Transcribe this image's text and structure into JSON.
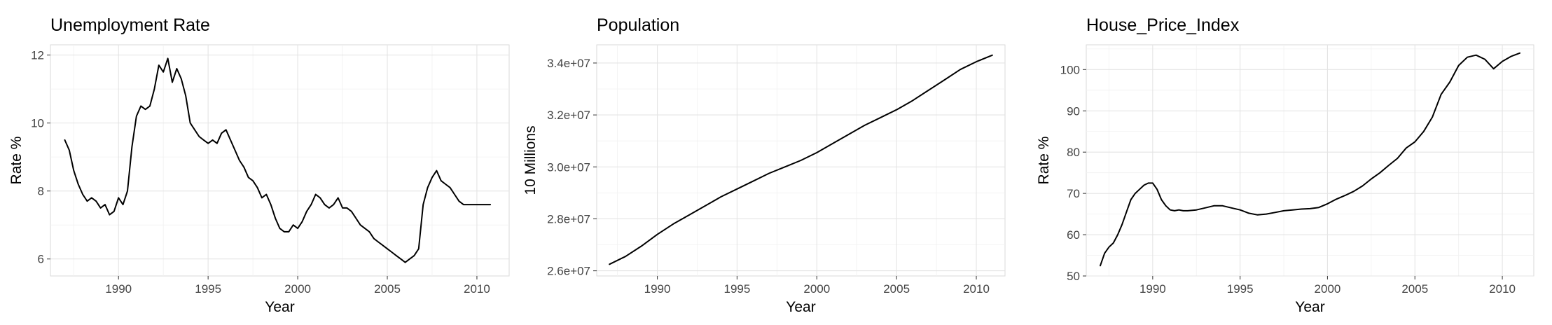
{
  "chart_data": [
    {
      "type": "line",
      "title": "Unemployment Rate",
      "xlabel": "Year",
      "ylabel": "Rate %",
      "xlim": [
        1986.2,
        2011.8
      ],
      "ylim": [
        5.5,
        12.3
      ],
      "xticks": [
        1990,
        1995,
        2000,
        2005,
        2010
      ],
      "yticks": [
        6,
        8,
        10,
        12
      ],
      "ytick_labels": [
        "6",
        "8",
        "10",
        "12"
      ],
      "grid": true,
      "series": [
        {
          "x": [
            1987.0,
            1987.25,
            1987.5,
            1987.75,
            1988.0,
            1988.25,
            1988.5,
            1988.75,
            1989.0,
            1989.25,
            1989.5,
            1989.75,
            1990.0,
            1990.25,
            1990.5,
            1990.75,
            1991.0,
            1991.25,
            1991.5,
            1991.75,
            1992.0,
            1992.25,
            1992.5,
            1992.75,
            1993.0,
            1993.25,
            1993.5,
            1993.75,
            1994.0,
            1994.25,
            1994.5,
            1994.75,
            1995.0,
            1995.25,
            1995.5,
            1995.75,
            1996.0,
            1996.25,
            1996.5,
            1996.75,
            1997.0,
            1997.25,
            1997.5,
            1997.75,
            1998.0,
            1998.25,
            1998.5,
            1998.75,
            1999.0,
            1999.25,
            1999.5,
            1999.75,
            2000.0,
            2000.25,
            2000.5,
            2000.75,
            2001.0,
            2001.25,
            2001.5,
            2001.75,
            2002.0,
            2002.25,
            2002.5,
            2002.75,
            2003.0,
            2003.25,
            2003.5,
            2003.75,
            2004.0,
            2004.25,
            2004.5,
            2004.75,
            2005.0,
            2005.25,
            2005.5,
            2005.75,
            2006.0,
            2006.25,
            2006.5,
            2006.75,
            2007.0,
            2007.25,
            2007.5,
            2007.75,
            2008.0,
            2008.25,
            2008.5,
            2008.75,
            2009.0,
            2009.25,
            2009.5,
            2009.75,
            2010.0,
            2010.25,
            2010.5,
            2010.75
          ],
          "values": [
            9.5,
            9.2,
            8.6,
            8.2,
            7.9,
            7.7,
            7.8,
            7.7,
            7.5,
            7.6,
            7.3,
            7.4,
            7.8,
            7.6,
            8.0,
            9.3,
            10.2,
            10.5,
            10.4,
            10.5,
            11.0,
            11.7,
            11.5,
            11.9,
            11.2,
            11.6,
            11.3,
            10.8,
            10.0,
            9.8,
            9.6,
            9.5,
            9.4,
            9.5,
            9.4,
            9.7,
            9.8,
            9.5,
            9.2,
            8.9,
            8.7,
            8.4,
            8.3,
            8.1,
            7.8,
            7.9,
            7.6,
            7.2,
            6.9,
            6.8,
            6.8,
            7.0,
            6.9,
            7.1,
            7.4,
            7.6,
            7.9,
            7.8,
            7.6,
            7.5,
            7.6,
            7.8,
            7.5,
            7.5,
            7.4,
            7.2,
            7.0,
            6.9,
            6.8,
            6.6,
            6.5,
            6.4,
            6.3,
            6.2,
            6.1,
            6.0,
            5.9,
            6.0,
            6.1,
            6.3,
            7.6,
            8.1,
            8.4,
            8.6,
            8.3,
            8.2,
            8.1,
            7.9,
            7.7,
            7.6,
            7.6,
            7.6,
            7.6,
            7.6,
            7.6,
            7.6
          ]
        }
      ]
    },
    {
      "type": "line",
      "title": "Population",
      "xlabel": "Year",
      "ylabel": "10 Millions",
      "xlim": [
        1986.2,
        2011.8
      ],
      "ylim": [
        25800000,
        34700000
      ],
      "xticks": [
        1990,
        1995,
        2000,
        2005,
        2010
      ],
      "yticks": [
        26000000,
        28000000,
        30000000,
        32000000,
        34000000
      ],
      "ytick_labels": [
        "2.6e+07",
        "2.8e+07",
        "3.0e+07",
        "3.2e+07",
        "3.4e+07"
      ],
      "grid": true,
      "series": [
        {
          "x": [
            1987.0,
            1988.0,
            1989.0,
            1990.0,
            1991.0,
            1992.0,
            1993.0,
            1994.0,
            1995.0,
            1996.0,
            1997.0,
            1998.0,
            1999.0,
            2000.0,
            2001.0,
            2002.0,
            2003.0,
            2004.0,
            2005.0,
            2006.0,
            2007.0,
            2008.0,
            2009.0,
            2010.0,
            2011.0
          ],
          "values": [
            26250000,
            26550000,
            26950000,
            27400000,
            27800000,
            28150000,
            28500000,
            28850000,
            29150000,
            29450000,
            29750000,
            30000000,
            30250000,
            30550000,
            30900000,
            31250000,
            31600000,
            31900000,
            32200000,
            32550000,
            32950000,
            33350000,
            33750000,
            34050000,
            34300000
          ]
        }
      ]
    },
    {
      "type": "line",
      "title": "House_Price_Index",
      "xlabel": "Year",
      "ylabel": "Rate %",
      "xlim": [
        1986.2,
        2011.8
      ],
      "ylim": [
        50,
        106
      ],
      "xticks": [
        1990,
        1995,
        2000,
        2005,
        2010
      ],
      "yticks": [
        50,
        60,
        70,
        80,
        90,
        100
      ],
      "ytick_labels": [
        "50",
        "60",
        "70",
        "80",
        "90",
        "100"
      ],
      "grid": true,
      "series": [
        {
          "x": [
            1987.0,
            1987.25,
            1987.5,
            1987.75,
            1988.0,
            1988.25,
            1988.5,
            1988.75,
            1989.0,
            1989.25,
            1989.5,
            1989.75,
            1990.0,
            1990.25,
            1990.5,
            1990.75,
            1991.0,
            1991.25,
            1991.5,
            1991.75,
            1992.0,
            1992.5,
            1993.0,
            1993.5,
            1994.0,
            1994.5,
            1995.0,
            1995.5,
            1996.0,
            1996.5,
            1997.0,
            1997.5,
            1998.0,
            1998.5,
            1999.0,
            1999.5,
            2000.0,
            2000.5,
            2001.0,
            2001.5,
            2002.0,
            2002.5,
            2003.0,
            2003.5,
            2004.0,
            2004.5,
            2005.0,
            2005.5,
            2006.0,
            2006.5,
            2007.0,
            2007.5,
            2008.0,
            2008.5,
            2009.0,
            2009.5,
            2010.0,
            2010.5,
            2011.0
          ],
          "values": [
            52.5,
            55.5,
            57.0,
            58.0,
            60.0,
            62.5,
            65.5,
            68.5,
            70.0,
            71.0,
            72.0,
            72.5,
            72.5,
            71.0,
            68.5,
            67.0,
            66.0,
            65.8,
            66.0,
            65.8,
            65.8,
            66.0,
            66.5,
            67.0,
            67.0,
            66.5,
            66.0,
            65.2,
            64.8,
            65.0,
            65.4,
            65.8,
            66.0,
            66.2,
            66.3,
            66.6,
            67.5,
            68.6,
            69.5,
            70.5,
            71.8,
            73.5,
            75.0,
            76.8,
            78.5,
            81.0,
            82.5,
            85.0,
            88.5,
            94.0,
            97.0,
            101.0,
            103.0,
            103.5,
            102.5,
            100.2,
            102.0,
            103.2,
            104.0
          ]
        }
      ]
    }
  ]
}
